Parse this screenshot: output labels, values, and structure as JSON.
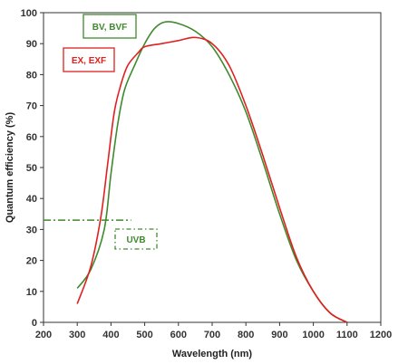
{
  "chart_data": {
    "type": "line",
    "title": "",
    "xlabel": "Wavelength (nm)",
    "ylabel": "Quantum efficiency (%)",
    "xlim": [
      200,
      1200
    ],
    "ylim": [
      0,
      100
    ],
    "xticks": [
      200,
      300,
      400,
      500,
      600,
      700,
      800,
      900,
      1000,
      1100,
      1200
    ],
    "yticks": [
      0,
      10,
      20,
      30,
      40,
      50,
      60,
      70,
      80,
      90,
      100
    ],
    "grid": false,
    "series": [
      {
        "name": "BV, BVF",
        "color": "#3f8a2e",
        "style": "solid",
        "x": [
          300,
          340,
          380,
          400,
          420,
          440,
          470,
          500,
          530,
          560,
          600,
          650,
          700,
          750,
          800,
          850,
          900,
          950,
          1000,
          1050,
          1100
        ],
        "y": [
          11,
          17,
          30,
          48,
          64,
          75,
          83,
          90,
          95,
          97,
          96.5,
          94,
          89,
          80,
          68,
          52,
          35,
          20,
          10,
          3,
          0
        ]
      },
      {
        "name": "EX, EXF",
        "color": "#e02020",
        "style": "solid",
        "x": [
          300,
          340,
          370,
          390,
          410,
          430,
          450,
          480,
          500,
          550,
          600,
          650,
          700,
          750,
          800,
          850,
          900,
          950,
          1000,
          1050,
          1100
        ],
        "y": [
          6,
          18,
          34,
          51,
          68,
          77,
          83,
          87,
          89,
          90,
          91,
          92,
          90,
          83,
          70,
          54,
          37,
          21,
          10,
          3,
          0
        ]
      },
      {
        "name": "UVB",
        "color": "#3f8a2e",
        "style": "dash-dot",
        "x": [
          200,
          460
        ],
        "y": [
          33,
          33
        ]
      }
    ],
    "legend": [
      {
        "label": "BV, BVF",
        "color": "#3f8a2e",
        "box": "solid"
      },
      {
        "label": "EX, EXF",
        "color": "#e02020",
        "box": "solid"
      },
      {
        "label": "UVB",
        "color": "#3f8a2e",
        "box": "dashed"
      }
    ]
  }
}
